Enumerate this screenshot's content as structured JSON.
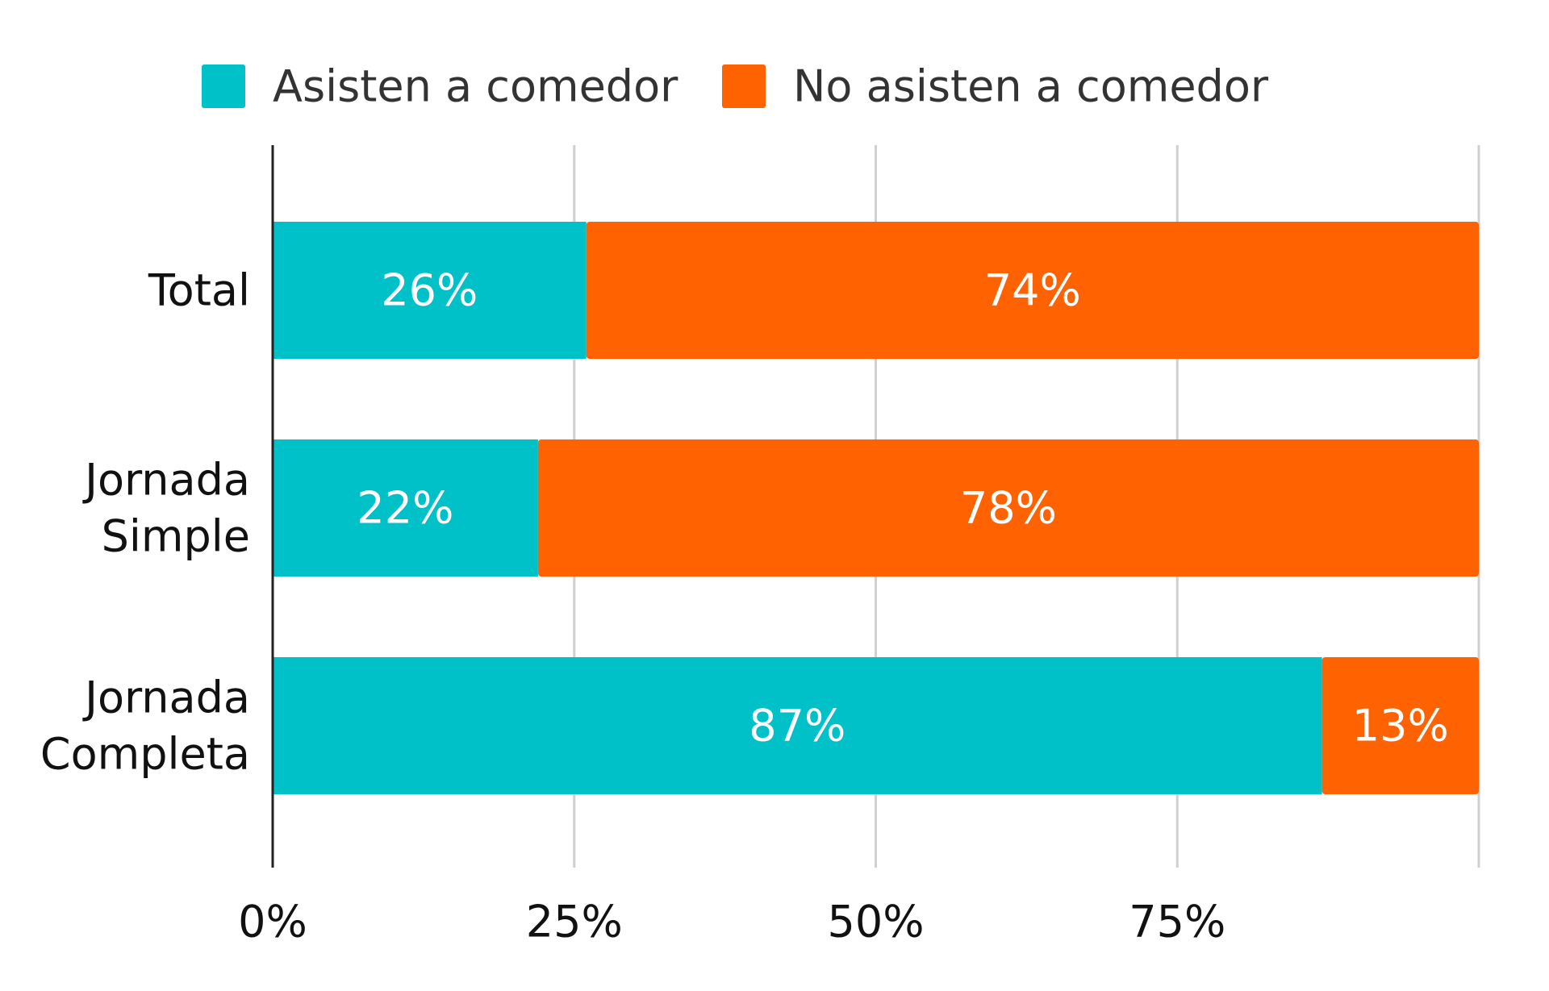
{
  "chart_data": {
    "type": "bar",
    "orientation": "horizontal",
    "stacked": true,
    "categories": [
      [
        "Total"
      ],
      [
        "Jornada",
        "Simple"
      ],
      [
        "Jornada",
        "Completa"
      ]
    ],
    "series": [
      {
        "name": "Asisten a comedor",
        "color": "#00C0C8",
        "values": [
          26,
          22,
          87
        ],
        "labels": [
          "26%",
          "22%",
          "87%"
        ]
      },
      {
        "name": "No asisten a comedor",
        "color": "#FF6200",
        "values": [
          74,
          78,
          13
        ],
        "labels": [
          "74%",
          "78%",
          "13%"
        ]
      }
    ],
    "xlim": [
      0,
      100
    ],
    "xticks": [
      0,
      25,
      50,
      75
    ],
    "xtick_labels": [
      "0%",
      "25%",
      "50%",
      "75%"
    ],
    "grid": true,
    "legend_position": "top",
    "title": "",
    "xlabel": "",
    "ylabel": "",
    "gridline_color": "#D0D0D0",
    "axis_color": "#222222"
  }
}
